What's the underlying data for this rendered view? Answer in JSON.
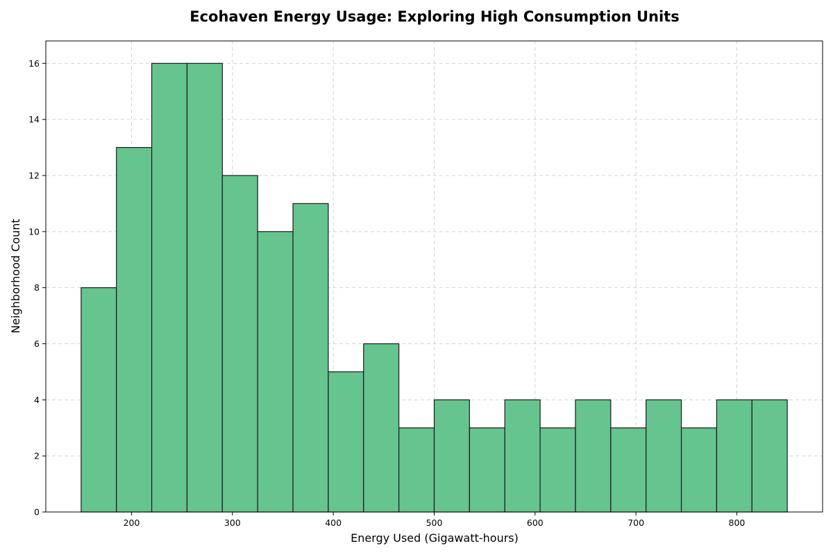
{
  "chart_data": {
    "type": "bar",
    "subtype": "histogram",
    "title": "Ecohaven Energy Usage: Exploring High Consumption Units",
    "xlabel": "Energy Used (Gigawatt-hours)",
    "ylabel": "Neighborhood Count",
    "bin_edges": [
      150,
      185,
      220,
      255,
      290,
      325,
      360,
      395,
      430,
      465,
      500,
      535,
      570,
      605,
      640,
      675,
      710,
      745,
      780,
      815,
      850
    ],
    "counts": [
      8,
      13,
      16,
      16,
      12,
      10,
      11,
      5,
      6,
      3,
      4,
      3,
      4,
      3,
      4,
      3,
      4,
      3,
      4,
      4
    ],
    "xlim": [
      115,
      885
    ],
    "ylim": [
      0,
      16.8
    ],
    "xticks": [
      200,
      300,
      400,
      500,
      600,
      700,
      800
    ],
    "yticks": [
      0,
      2,
      4,
      6,
      8,
      10,
      12,
      14,
      16
    ],
    "bar_color": "#66c48f",
    "edge_color": "#1a1a1a",
    "grid": true
  }
}
